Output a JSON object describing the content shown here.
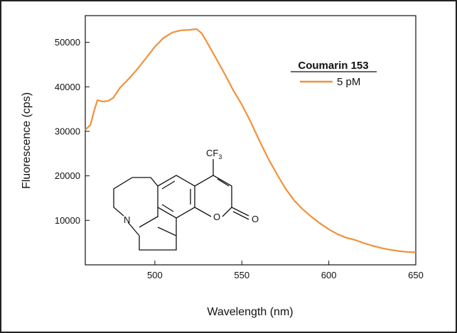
{
  "chart_data": {
    "type": "line",
    "xlabel": "Wavelength (nm)",
    "ylabel": "Fluorescence (cps)",
    "xlim": [
      460,
      650
    ],
    "ylim": [
      0,
      56000
    ],
    "xticks": [
      500,
      550,
      600,
      650
    ],
    "yticks": [
      10000,
      20000,
      30000,
      40000,
      50000
    ],
    "grid": false,
    "legend": {
      "title": "Coumarin 153",
      "placement": "top-right"
    },
    "series": [
      {
        "name": "5 pM",
        "color": "#f0923a",
        "x": [
          460,
          463,
          465,
          467,
          470,
          473,
          476,
          480,
          485,
          490,
          495,
          500,
          505,
          510,
          515,
          520,
          524,
          527,
          530,
          535,
          540,
          545,
          550,
          555,
          560,
          565,
          570,
          575,
          580,
          585,
          590,
          595,
          600,
          605,
          610,
          615,
          620,
          625,
          630,
          635,
          640,
          645,
          650
        ],
        "y": [
          30300,
          31500,
          34500,
          37000,
          36700,
          36800,
          37500,
          39800,
          41800,
          44000,
          46500,
          49000,
          51000,
          52200,
          52700,
          52800,
          53000,
          52000,
          50000,
          46500,
          43000,
          39300,
          36000,
          32200,
          28000,
          24000,
          20500,
          17200,
          14500,
          12500,
          10800,
          9300,
          8000,
          6900,
          6100,
          5600,
          4900,
          4300,
          3800,
          3400,
          3100,
          2900,
          2800
        ]
      }
    ]
  },
  "structure": {
    "substituent_label": "CF",
    "substituent_subscript": "3",
    "n_label": "N",
    "o_ring_label": "O",
    "o_carbonyl_label": "O"
  }
}
